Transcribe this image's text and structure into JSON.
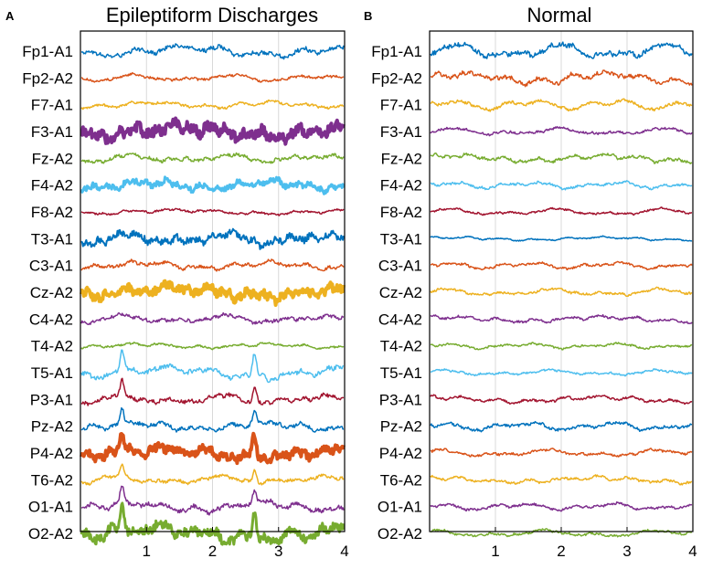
{
  "chart_data": [
    {
      "type": "line",
      "panel_letter": "A",
      "title": "Epileptiform Discharges",
      "xlabel": "",
      "ylabel": "",
      "xlim": [
        0,
        4
      ],
      "xticks": [
        1,
        2,
        3,
        4
      ],
      "grid": "vertical",
      "channels": [
        "Fp1-A1",
        "Fp2-A2",
        "F7-A1",
        "F3-A1",
        "Fz-A2",
        "F4-A2",
        "F8-A2",
        "T3-A1",
        "C3-A1",
        "Cz-A2",
        "C4-A2",
        "T4-A2",
        "T5-A1",
        "P3-A1",
        "Pz-A2",
        "P4-A2",
        "T6-A2",
        "O1-A1",
        "O2-A2"
      ],
      "trace_style": [
        {
          "color": "#0072BD",
          "amplitude": 9,
          "roughness": 0.5,
          "width": 1.5
        },
        {
          "color": "#D95319",
          "amplitude": 5,
          "roughness": 0.5,
          "width": 1.5
        },
        {
          "color": "#EDB120",
          "amplitude": 5,
          "roughness": 0.5,
          "width": 1.5
        },
        {
          "color": "#7E2F8E",
          "amplitude": 11,
          "roughness": 1.0,
          "width": 4
        },
        {
          "color": "#77AC30",
          "amplitude": 6,
          "roughness": 0.6,
          "width": 1.5
        },
        {
          "color": "#4DBEEE",
          "amplitude": 7,
          "roughness": 0.9,
          "width": 3
        },
        {
          "color": "#A2142F",
          "amplitude": 4,
          "roughness": 0.5,
          "width": 1.5
        },
        {
          "color": "#0072BD",
          "amplitude": 8,
          "roughness": 1.0,
          "width": 2
        },
        {
          "color": "#D95319",
          "amplitude": 6,
          "roughness": 0.6,
          "width": 1.5
        },
        {
          "color": "#EDB120",
          "amplitude": 9,
          "roughness": 1.0,
          "width": 4
        },
        {
          "color": "#7E2F8E",
          "amplitude": 6,
          "roughness": 0.6,
          "width": 1.5
        },
        {
          "color": "#77AC30",
          "amplitude": 4,
          "roughness": 0.5,
          "width": 1.5
        },
        {
          "color": "#4DBEEE",
          "amplitude": 10,
          "roughness": 0.5,
          "width": 1.5
        },
        {
          "color": "#A2142F",
          "amplitude": 7,
          "roughness": 0.6,
          "width": 1.5
        },
        {
          "color": "#0072BD",
          "amplitude": 7,
          "roughness": 0.6,
          "width": 1.5
        },
        {
          "color": "#D95319",
          "amplitude": 9,
          "roughness": 1.0,
          "width": 4
        },
        {
          "color": "#EDB120",
          "amplitude": 6,
          "roughness": 0.6,
          "width": 1.5
        },
        {
          "color": "#7E2F8E",
          "amplitude": 8,
          "roughness": 0.6,
          "width": 1.5
        },
        {
          "color": "#77AC30",
          "amplitude": 13,
          "roughness": 0.8,
          "width": 3
        }
      ]
    },
    {
      "type": "line",
      "panel_letter": "B",
      "title": "Normal",
      "xlabel": "",
      "ylabel": "",
      "xlim": [
        0,
        4
      ],
      "xticks": [
        1,
        2,
        3,
        4
      ],
      "grid": "vertical",
      "channels": [
        "Fp1-A1",
        "Fp2-A2",
        "F7-A1",
        "F3-A1",
        "Fz-A2",
        "F4-A2",
        "F8-A2",
        "T3-A1",
        "C3-A1",
        "Cz-A2",
        "C4-A2",
        "T4-A2",
        "T5-A1",
        "P3-A1",
        "Pz-A2",
        "P4-A2",
        "T6-A2",
        "O1-A1",
        "O2-A2"
      ],
      "trace_style": [
        {
          "color": "#0072BD",
          "amplitude": 11,
          "roughness": 0.5,
          "width": 1.5
        },
        {
          "color": "#D95319",
          "amplitude": 9,
          "roughness": 0.5,
          "width": 1.5
        },
        {
          "color": "#EDB120",
          "amplitude": 8,
          "roughness": 0.4,
          "width": 1.5
        },
        {
          "color": "#7E2F8E",
          "amplitude": 5,
          "roughness": 0.5,
          "width": 1.5
        },
        {
          "color": "#77AC30",
          "amplitude": 6,
          "roughness": 0.5,
          "width": 1.5
        },
        {
          "color": "#4DBEEE",
          "amplitude": 5,
          "roughness": 0.5,
          "width": 1.5
        },
        {
          "color": "#A2142F",
          "amplitude": 5,
          "roughness": 0.4,
          "width": 1.5
        },
        {
          "color": "#0072BD",
          "amplitude": 3,
          "roughness": 0.4,
          "width": 1.5
        },
        {
          "color": "#D95319",
          "amplitude": 5,
          "roughness": 0.5,
          "width": 1.5
        },
        {
          "color": "#EDB120",
          "amplitude": 5,
          "roughness": 0.5,
          "width": 1.5
        },
        {
          "color": "#7E2F8E",
          "amplitude": 5,
          "roughness": 0.5,
          "width": 1.5
        },
        {
          "color": "#77AC30",
          "amplitude": 4,
          "roughness": 0.5,
          "width": 1.5
        },
        {
          "color": "#4DBEEE",
          "amplitude": 4,
          "roughness": 0.5,
          "width": 1.5
        },
        {
          "color": "#A2142F",
          "amplitude": 5,
          "roughness": 0.5,
          "width": 1.5
        },
        {
          "color": "#0072BD",
          "amplitude": 6,
          "roughness": 0.5,
          "width": 1.5
        },
        {
          "color": "#D95319",
          "amplitude": 5,
          "roughness": 0.5,
          "width": 1.5
        },
        {
          "color": "#EDB120",
          "amplitude": 5,
          "roughness": 0.5,
          "width": 1.5
        },
        {
          "color": "#7E2F8E",
          "amplitude": 5,
          "roughness": 0.5,
          "width": 1.5
        },
        {
          "color": "#77AC30",
          "amplitude": 5,
          "roughness": 0.5,
          "width": 1.5
        }
      ]
    }
  ]
}
